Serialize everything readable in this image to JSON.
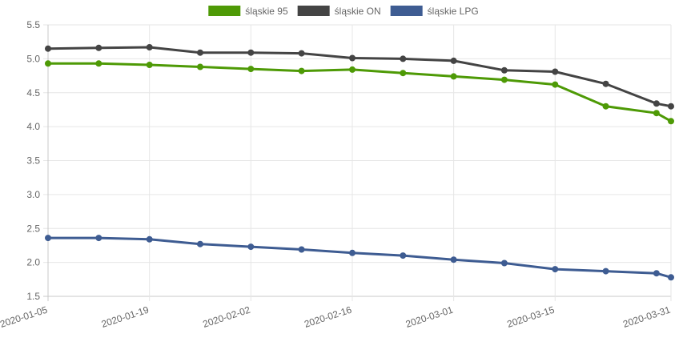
{
  "chart_data": {
    "type": "line",
    "x": [
      "2020-01-05",
      "2020-01-12",
      "2020-01-19",
      "2020-01-26",
      "2020-02-02",
      "2020-02-09",
      "2020-02-16",
      "2020-02-23",
      "2020-03-01",
      "2020-03-08",
      "2020-03-15",
      "2020-03-22",
      "2020-03-29",
      "2020-03-31"
    ],
    "x_tick_labels": [
      "2020-01-05",
      "2020-01-19",
      "2020-02-02",
      "2020-02-16",
      "2020-03-01",
      "2020-03-15",
      "2020-03-31"
    ],
    "y_tick_labels": [
      "5.5",
      "5.0",
      "4.5",
      "4.0",
      "3.5",
      "3.0",
      "2.5",
      "2.0",
      "1.5"
    ],
    "ylim": [
      1.5,
      5.5
    ],
    "grid": true,
    "legend_position": "top",
    "series": [
      {
        "name": "śląskie 95",
        "color": "#4e9a06",
        "values": [
          4.93,
          4.93,
          4.91,
          4.88,
          4.85,
          4.82,
          4.84,
          4.79,
          4.74,
          4.69,
          4.62,
          4.3,
          4.2,
          4.08
        ]
      },
      {
        "name": "śląskie ON",
        "color": "#444444",
        "values": [
          5.15,
          5.16,
          5.17,
          5.09,
          5.09,
          5.08,
          5.01,
          5.0,
          4.97,
          4.83,
          4.81,
          4.63,
          4.34,
          4.3
        ]
      },
      {
        "name": "śląskie LPG",
        "color": "#3e5c92",
        "values": [
          2.36,
          2.36,
          2.34,
          2.27,
          2.23,
          2.19,
          2.14,
          2.1,
          2.04,
          1.99,
          1.9,
          1.87,
          1.84,
          1.78
        ]
      }
    ]
  }
}
